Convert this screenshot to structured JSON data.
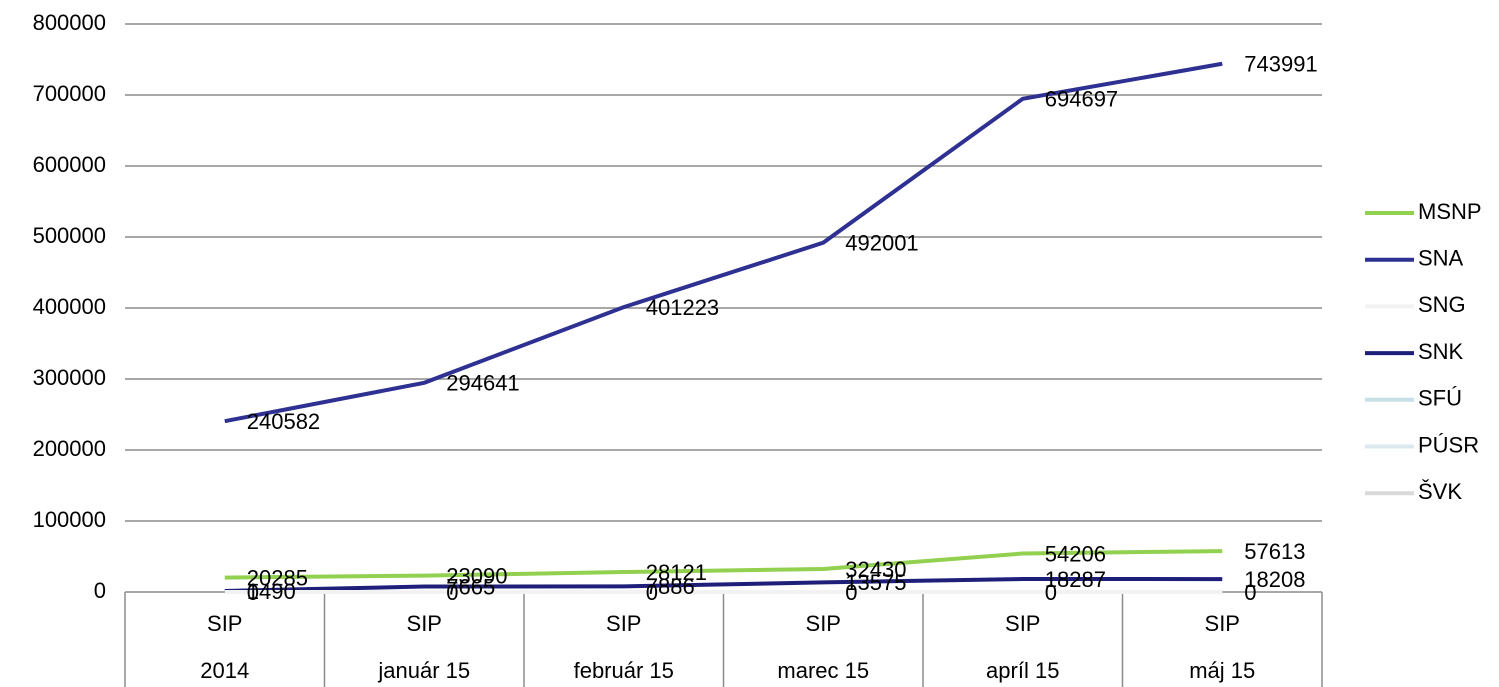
{
  "chart_data": {
    "type": "line",
    "categories": [
      "2014",
      "január 15",
      "február 15",
      "marec 15",
      "apríl 15",
      "máj 15"
    ],
    "category_groups": [
      "SIP",
      "SIP",
      "SIP",
      "SIP",
      "SIP",
      "SIP"
    ],
    "series": [
      {
        "name": "MSNP",
        "color": "#92d050",
        "values": [
          20285,
          23090,
          28121,
          32430,
          54206,
          57613
        ],
        "show_labels": true
      },
      {
        "name": "SNA",
        "color": "#2e3192",
        "values": [
          240582,
          294641,
          401223,
          492001,
          694697,
          743991
        ],
        "show_labels": true
      },
      {
        "name": "SNG",
        "color": "#f2f2f2",
        "values": [
          0,
          0,
          0,
          0,
          0,
          0
        ],
        "show_labels": false
      },
      {
        "name": "SNK",
        "color": "#1f1f7a",
        "values": [
          1490,
          7665,
          7886,
          13575,
          18287,
          18208
        ],
        "show_labels": true
      },
      {
        "name": "SFÚ",
        "color": "#c6e0e8",
        "values": [
          0,
          0,
          0,
          0,
          0,
          0
        ],
        "show_labels": false
      },
      {
        "name": "PÚSR",
        "color": "#dbe9ef",
        "values": [
          0,
          0,
          0,
          0,
          0,
          0
        ],
        "show_labels": false
      },
      {
        "name": "ŠVK",
        "color": "#d9d9d9",
        "values": [
          0,
          0,
          0,
          0,
          0,
          0
        ],
        "show_labels": true
      }
    ],
    "ylim": [
      0,
      800000
    ],
    "yticks": [
      0,
      100000,
      200000,
      300000,
      400000,
      500000,
      600000,
      700000,
      800000
    ],
    "grid": true,
    "legend": "right"
  }
}
